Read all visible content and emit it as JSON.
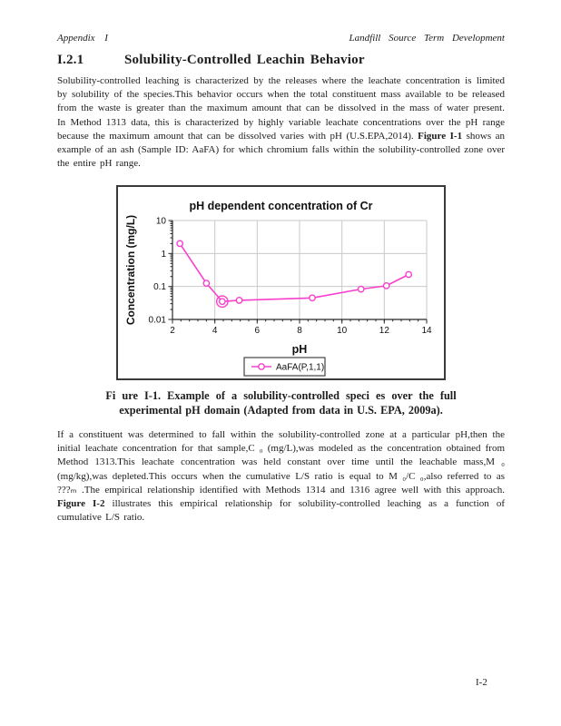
{
  "header": {
    "left": "Appendix I",
    "right": "Landfill Source Term Development"
  },
  "heading": {
    "number": "I.2.1",
    "title": "Solubility-Controlled Leachin Behavior"
  },
  "paragraphs": [
    {
      "segments": [
        {
          "t": "Solubility-controlled leaching is characterized by the releases where the leachate concentration is limited by solubility of the species.This behavior occurs when the total constituent mass available to be released from the waste is greater than the maximum amount that can be dissolved in the mass of water present. In Method 1313 data, this is characterized by highly variable leachate concentrations over the pH range because the maximum amount that can be dissolved varies with pH (U.S.EPA,2014). ",
          "b": false
        },
        {
          "t": "Figure I-1",
          "b": true
        },
        {
          "t": " shows an example of an ash (Sample ID: AaFA) for which chromium falls within the solubility-controlled zone over the entire pH range.",
          "b": false
        }
      ]
    },
    {
      "segments": [
        {
          "t": "If a constituent was determined to fall within the solubility-controlled zone at a particular pH,then the initial leachate concentration for that sample,C ₀ (mg/L),was modeled as the concentration obtained from Method 1313.This leachate concentration was held constant over time until the leachable mass,M ₀ (mg/kg),was depleted.This occurs when the cumulative L/S ratio is equal to M ₀/C ₀,also referred to as ???ₘ .The empirical relationship identified with Methods 1314 and 1316 agree well with this approach. ",
          "b": false
        },
        {
          "t": "Figure I-2",
          "b": true
        },
        {
          "t": " illustrates this empirical relationship for solubility-controlled leaching as a function of cumulative L/S ratio.",
          "b": false
        }
      ]
    }
  ],
  "caption": {
    "line1": "Fi ure I-1. Example of a solubility-controlled speci es over the full",
    "line2": "experimental pH domain (Adapted from data in U.S. EPA, 2009a)."
  },
  "footer": {
    "page_number": "I-2"
  },
  "chart_data": {
    "type": "line",
    "title": "pH dependent concentration of Cr",
    "xlabel": "pH",
    "ylabel": "Concentration (mg/L)",
    "x_ticks": [
      2,
      4,
      6,
      8,
      10,
      12,
      14
    ],
    "y_ticks": [
      10,
      1,
      0.1,
      0.01
    ],
    "xlim": [
      2,
      14
    ],
    "ylim": [
      0.01,
      10
    ],
    "y_scale": "log",
    "grid": true,
    "legend_position": "bottom",
    "series": [
      {
        "name": "AaFA(P,1,1)",
        "color": "#f840cc",
        "marker": "circle",
        "points": [
          {
            "x": 2.35,
            "y": 2.0
          },
          {
            "x": 3.6,
            "y": 0.125
          },
          {
            "x": 4.35,
            "y": 0.035,
            "emphasis": true
          },
          {
            "x": 5.15,
            "y": 0.038
          },
          {
            "x": 8.6,
            "y": 0.045
          },
          {
            "x": 10.9,
            "y": 0.083
          },
          {
            "x": 12.1,
            "y": 0.105
          },
          {
            "x": 13.15,
            "y": 0.23
          }
        ]
      }
    ]
  },
  "colors": {
    "series_pink": "#f840cc",
    "gridline": "#c9c9c9",
    "axis": "#262626",
    "chart_border": "#3a3a3a",
    "text": "#1c1c1c"
  }
}
